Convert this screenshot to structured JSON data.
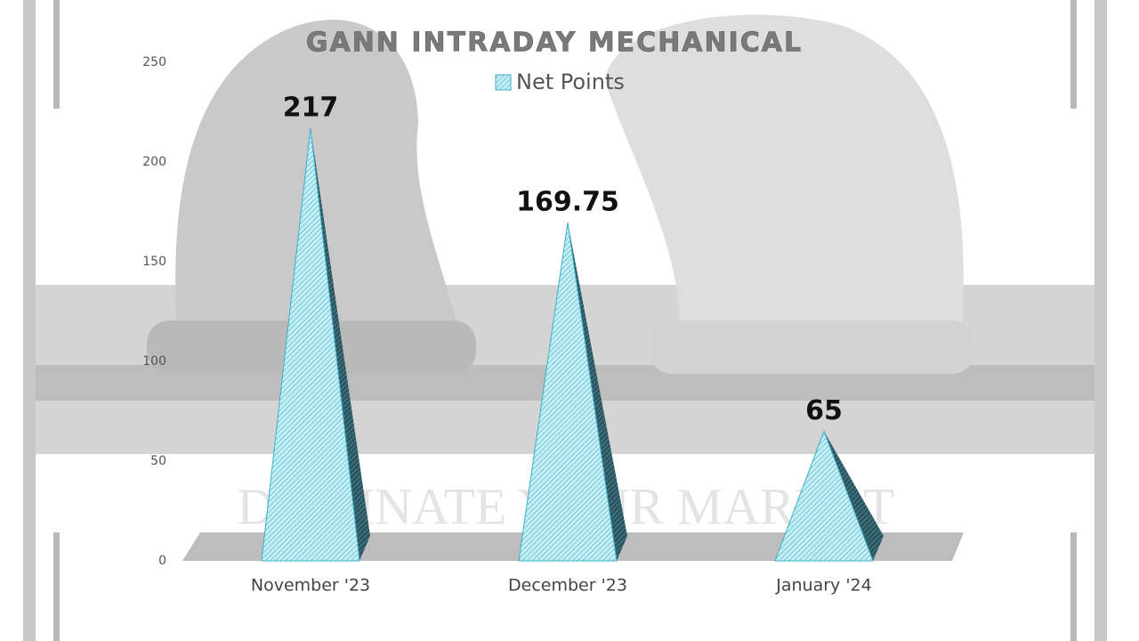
{
  "chart_data": {
    "type": "pyramid",
    "title": "GANN INTRADAY MECHANICAL",
    "watermark": "DOMINATE YOUR MARKET",
    "categories": [
      "November '23",
      "December '23",
      "January '24"
    ],
    "series": [
      {
        "name": "Net Points",
        "color": "#a8e4ef",
        "values": [
          217,
          169.75,
          65
        ]
      }
    ],
    "ylim": [
      0,
      250
    ],
    "yticks": [
      0,
      50,
      100,
      150,
      200,
      250
    ],
    "grid": false
  }
}
